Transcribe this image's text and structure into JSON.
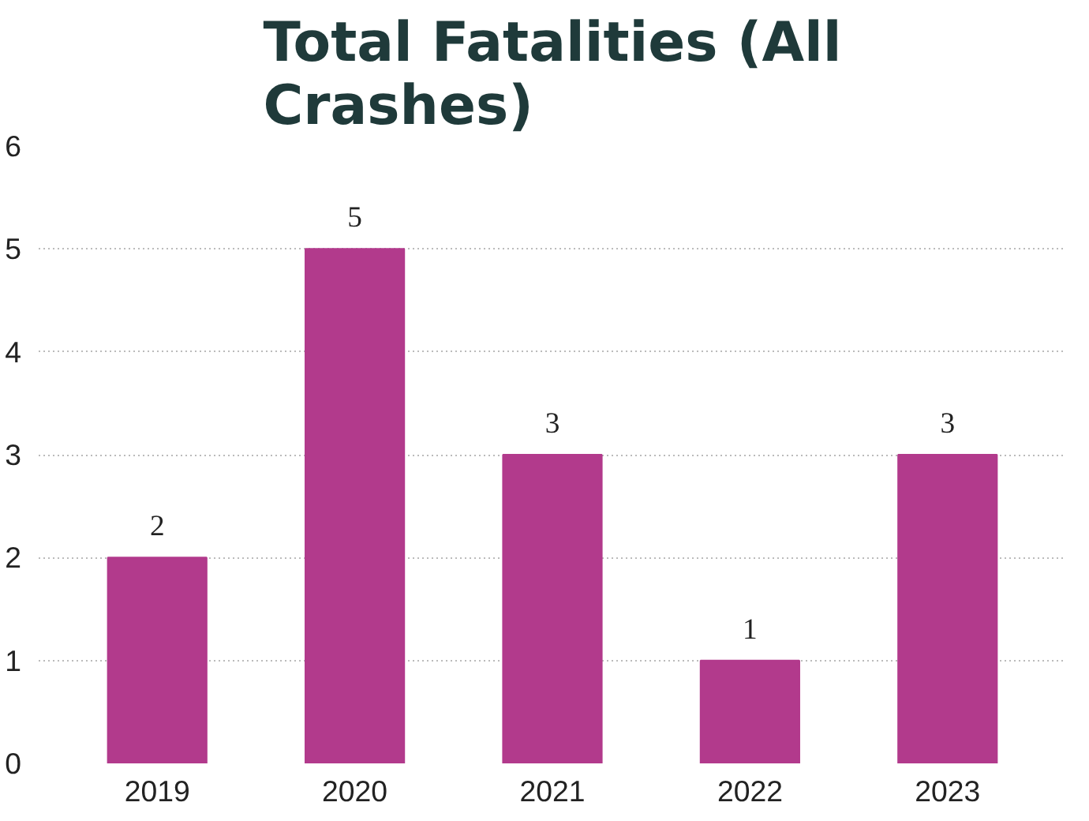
{
  "chart_data": {
    "type": "bar",
    "title": "Total Fatalities (All Crashes)",
    "categories": [
      "2019",
      "2020",
      "2021",
      "2022",
      "2023"
    ],
    "values": [
      2,
      5,
      3,
      1,
      3
    ],
    "color": "#b23a8c",
    "ylim": [
      0,
      6
    ],
    "yticks": [
      0,
      1,
      2,
      3,
      4,
      5,
      6
    ],
    "grid": "y",
    "data_labels": true
  }
}
